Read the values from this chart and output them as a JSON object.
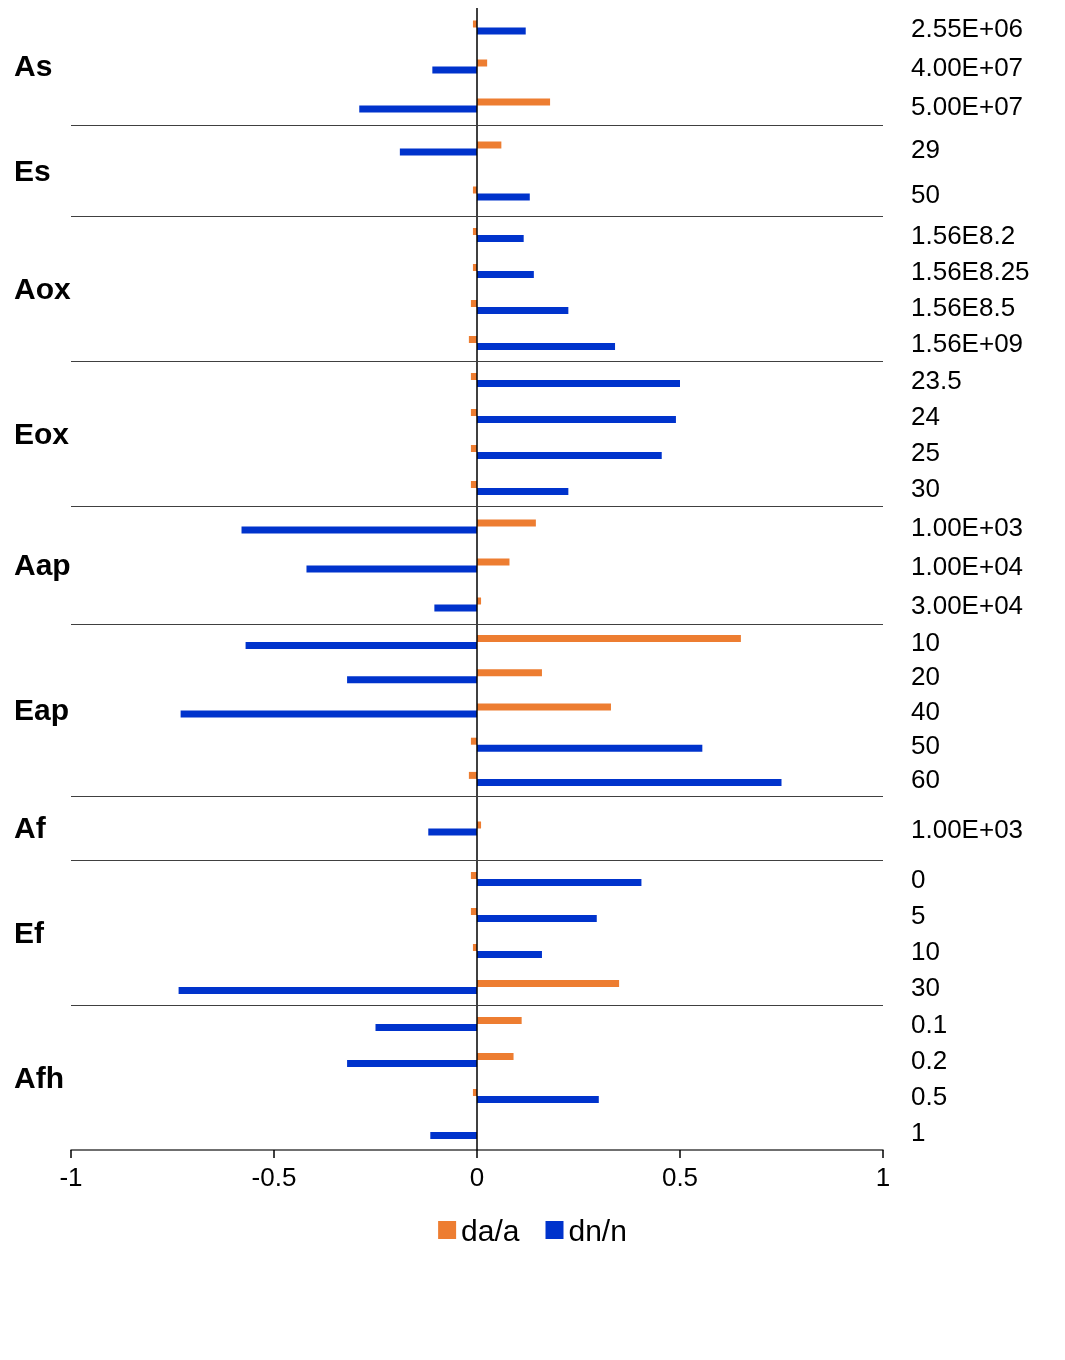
{
  "chart_data": [
    {
      "type": "bar",
      "orientation": "horizontal",
      "ylabel": "As",
      "categories": [
        "2.55E+06",
        "4.00E+07",
        "5.00E+07"
      ],
      "xlim": [
        -1,
        1
      ],
      "tick_labels": "y",
      "ref_lines": [
        {
          "axis": "x",
          "value": 0,
          "color": "#000000"
        }
      ],
      "series": [
        {
          "color": "#ed7d31",
          "values": [
            -0.01,
            0.025,
            0.18
          ]
        },
        {
          "color": "#0033cc",
          "values": [
            0.12,
            -0.11,
            -0.29
          ]
        }
      ]
    },
    {
      "type": "bar",
      "orientation": "horizontal",
      "ylabel": "Es",
      "categories": [
        "29",
        "50"
      ],
      "xlim": [
        -1,
        1
      ],
      "tick_labels": "y",
      "ref_lines": [
        {
          "axis": "x",
          "value": 0,
          "color": "#000000"
        }
      ],
      "series": [
        {
          "color": "#ed7d31",
          "values": [
            0.06,
            -0.01
          ]
        },
        {
          "color": "#0033cc",
          "values": [
            -0.19,
            0.13
          ]
        }
      ]
    },
    {
      "type": "bar",
      "orientation": "horizontal",
      "ylabel": "Aox",
      "categories": [
        "1.56E8.2",
        "1.56E8.25",
        "1.56E8.5",
        "1.56E+09"
      ],
      "xlim": [
        -1,
        1
      ],
      "tick_labels": "y",
      "ref_lines": [
        {
          "axis": "x",
          "value": 0,
          "color": "#000000"
        }
      ],
      "series": [
        {
          "color": "#ed7d31",
          "values": [
            -0.01,
            -0.01,
            -0.015,
            -0.02
          ]
        },
        {
          "color": "#0033cc",
          "values": [
            0.115,
            0.14,
            0.225,
            0.34
          ]
        }
      ]
    },
    {
      "type": "bar",
      "orientation": "horizontal",
      "ylabel": "Eox",
      "categories": [
        "23.5",
        "24",
        "25",
        "30"
      ],
      "xlim": [
        -1,
        1
      ],
      "tick_labels": "y",
      "ref_lines": [
        {
          "axis": "x",
          "value": 0,
          "color": "#000000"
        }
      ],
      "series": [
        {
          "color": "#ed7d31",
          "values": [
            -0.015,
            -0.015,
            -0.015,
            -0.015
          ]
        },
        {
          "color": "#0033cc",
          "values": [
            0.5,
            0.49,
            0.455,
            0.225
          ]
        }
      ]
    },
    {
      "type": "bar",
      "orientation": "horizontal",
      "ylabel": "Aap",
      "categories": [
        "1.00E+03",
        "1.00E+04",
        "3.00E+04"
      ],
      "xlim": [
        -1,
        1
      ],
      "tick_labels": "y",
      "ref_lines": [
        {
          "axis": "x",
          "value": 0,
          "color": "#000000"
        }
      ],
      "series": [
        {
          "color": "#ed7d31",
          "values": [
            0.145,
            0.08,
            0.01
          ]
        },
        {
          "color": "#0033cc",
          "values": [
            -0.58,
            -0.42,
            -0.105
          ]
        }
      ]
    },
    {
      "type": "bar",
      "orientation": "horizontal",
      "ylabel": "Eap",
      "categories": [
        "10",
        "20",
        "40",
        "50",
        "60"
      ],
      "xlim": [
        -1,
        1
      ],
      "tick_labels": "y",
      "ref_lines": [
        {
          "axis": "x",
          "value": 0,
          "color": "#000000"
        }
      ],
      "series": [
        {
          "color": "#ed7d31",
          "values": [
            0.65,
            0.16,
            0.33,
            -0.015,
            -0.02
          ]
        },
        {
          "color": "#0033cc",
          "values": [
            -0.57,
            -0.32,
            -0.73,
            0.555,
            0.75
          ]
        }
      ]
    },
    {
      "type": "bar",
      "orientation": "horizontal",
      "ylabel": "Af",
      "categories": [
        "1.00E+03"
      ],
      "xlim": [
        -1,
        1
      ],
      "tick_labels": "y",
      "ref_lines": [
        {
          "axis": "x",
          "value": 0,
          "color": "#000000"
        }
      ],
      "series": [
        {
          "color": "#ed7d31",
          "values": [
            0.01
          ]
        },
        {
          "color": "#0033cc",
          "values": [
            -0.12
          ]
        }
      ]
    },
    {
      "type": "bar",
      "orientation": "horizontal",
      "ylabel": "Ef",
      "categories": [
        "0",
        "5",
        "10",
        "30"
      ],
      "xlim": [
        -1,
        1
      ],
      "tick_labels": "y",
      "ref_lines": [
        {
          "axis": "x",
          "value": 0,
          "color": "#000000"
        }
      ],
      "series": [
        {
          "color": "#ed7d31",
          "values": [
            -0.015,
            -0.015,
            -0.01,
            0.35
          ]
        },
        {
          "color": "#0033cc",
          "values": [
            0.405,
            0.295,
            0.16,
            -0.735
          ]
        }
      ]
    },
    {
      "type": "bar",
      "orientation": "horizontal",
      "ylabel": "Afh",
      "categories": [
        "0.1",
        "0.2",
        "0.5",
        "1"
      ],
      "xlim": [
        -1,
        1
      ],
      "xticks": [
        -1,
        -0.5,
        0,
        0.5,
        1
      ],
      "legend": "bottom",
      "ref_lines": [
        {
          "axis": "x",
          "value": 0,
          "color": "#000000"
        }
      ],
      "series": [
        {
          "name": "da/a",
          "color": "#ed7d31",
          "values": [
            0.11,
            0.09,
            -0.01,
            0
          ]
        },
        {
          "name": "dn/n",
          "color": "#0033cc",
          "values": [
            -0.25,
            -0.32,
            0.3,
            -0.115
          ]
        }
      ]
    }
  ]
}
